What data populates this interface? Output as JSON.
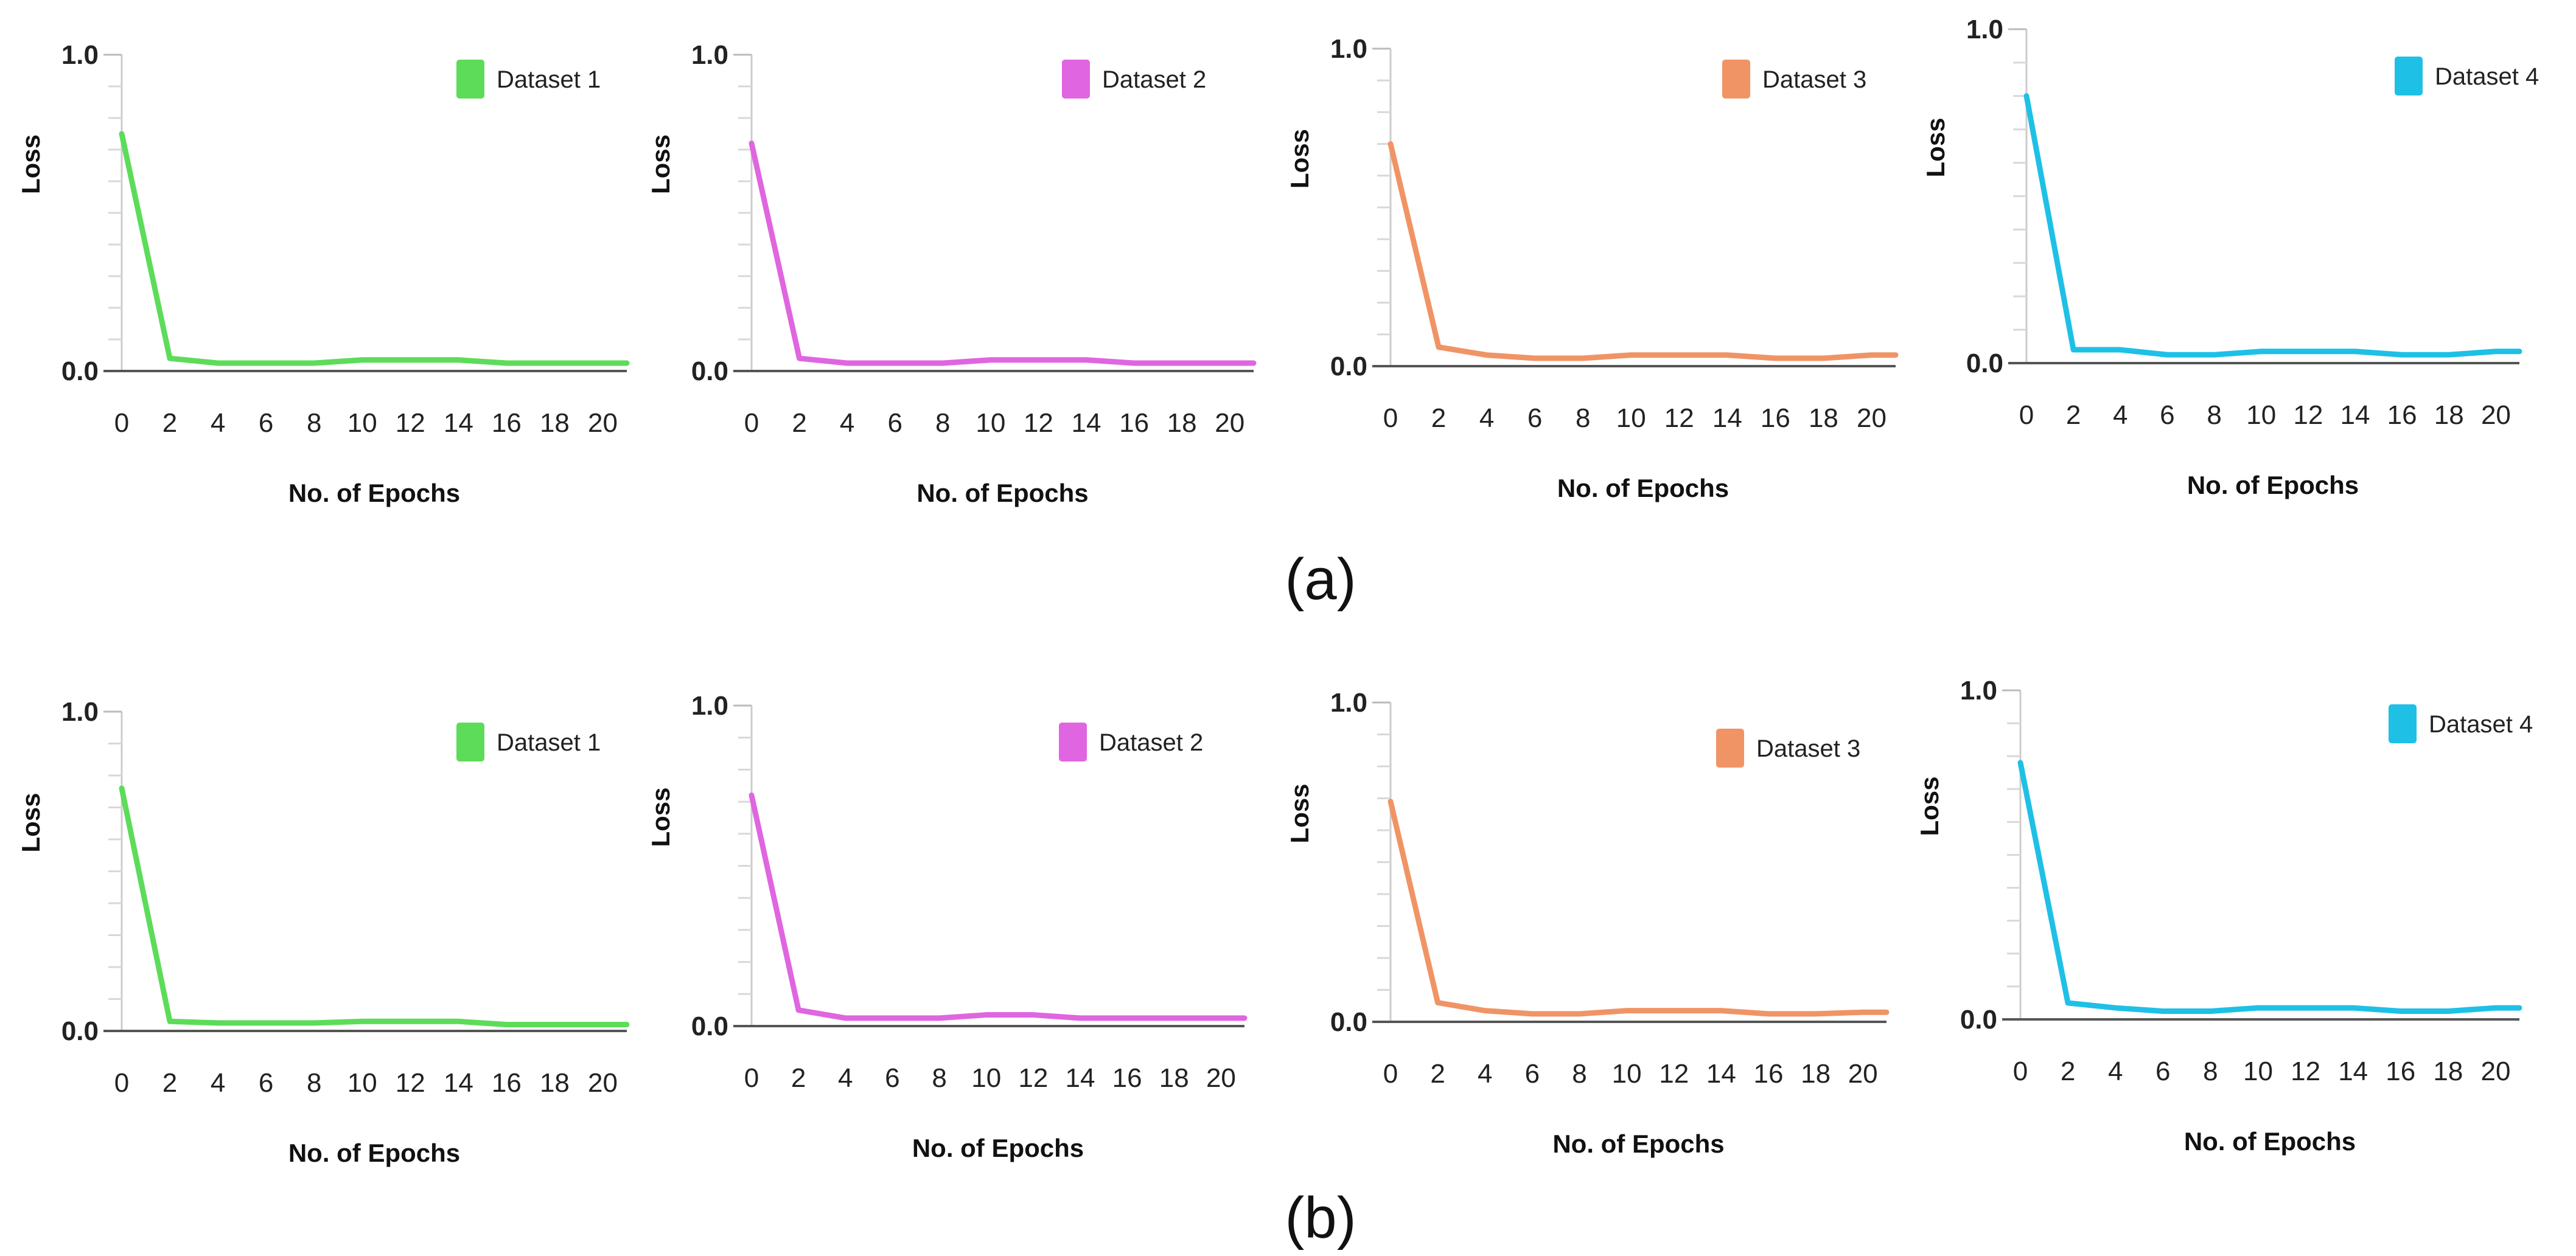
{
  "panels": [
    {
      "label": "(a)"
    },
    {
      "label": "(b)"
    }
  ],
  "chart_data": [
    {
      "type": "line",
      "row": "a",
      "title": "",
      "legend": "Dataset 1",
      "color": "#5ddc5a",
      "xlabel": "No. of Epochs",
      "ylabel": "Loss",
      "xlim": [
        0,
        21
      ],
      "ylim": [
        0,
        1.0
      ],
      "xticks": [
        0,
        2,
        4,
        6,
        8,
        10,
        12,
        14,
        16,
        18,
        20
      ],
      "yticks": [
        0.0,
        1.0
      ],
      "x": [
        0,
        2,
        4,
        6,
        8,
        10,
        12,
        14,
        16,
        18,
        20,
        21
      ],
      "y": [
        0.75,
        0.04,
        0.025,
        0.025,
        0.025,
        0.035,
        0.035,
        0.035,
        0.025,
        0.025,
        0.025,
        0.025
      ]
    },
    {
      "type": "line",
      "row": "a",
      "title": "",
      "legend": "Dataset 2",
      "color": "#e065e0",
      "xlabel": "No. of Epochs",
      "ylabel": "Loss",
      "xlim": [
        0,
        21
      ],
      "ylim": [
        0,
        1.0
      ],
      "xticks": [
        0,
        2,
        4,
        6,
        8,
        10,
        12,
        14,
        16,
        18,
        20
      ],
      "yticks": [
        0.0,
        1.0
      ],
      "x": [
        0,
        2,
        4,
        6,
        8,
        10,
        12,
        14,
        16,
        18,
        20,
        21
      ],
      "y": [
        0.72,
        0.04,
        0.025,
        0.025,
        0.025,
        0.035,
        0.035,
        0.035,
        0.025,
        0.025,
        0.025,
        0.025
      ]
    },
    {
      "type": "line",
      "row": "a",
      "title": "",
      "legend": "Dataset 3",
      "color": "#f09466",
      "xlabel": "No. of Epochs",
      "ylabel": "Loss",
      "xlim": [
        0,
        21
      ],
      "ylim": [
        0,
        1.0
      ],
      "xticks": [
        0,
        2,
        4,
        6,
        8,
        10,
        12,
        14,
        16,
        18,
        20
      ],
      "yticks": [
        0.0,
        1.0
      ],
      "x": [
        0,
        2,
        4,
        6,
        8,
        10,
        12,
        14,
        16,
        18,
        20,
        21
      ],
      "y": [
        0.7,
        0.06,
        0.035,
        0.025,
        0.025,
        0.035,
        0.035,
        0.035,
        0.025,
        0.025,
        0.035,
        0.035
      ]
    },
    {
      "type": "line",
      "row": "a",
      "title": "",
      "legend": "Dataset 4",
      "color": "#1ec0e6",
      "xlabel": "No. of Epochs",
      "ylabel": "Loss",
      "xlim": [
        0,
        21
      ],
      "ylim": [
        0,
        1.0
      ],
      "xticks": [
        0,
        2,
        4,
        6,
        8,
        10,
        12,
        14,
        16,
        18,
        20
      ],
      "yticks": [
        0.0,
        1.0
      ],
      "x": [
        0,
        2,
        4,
        6,
        8,
        10,
        12,
        14,
        16,
        18,
        20,
        21
      ],
      "y": [
        0.8,
        0.04,
        0.04,
        0.025,
        0.025,
        0.035,
        0.035,
        0.035,
        0.025,
        0.025,
        0.035,
        0.035
      ]
    },
    {
      "type": "line",
      "row": "b",
      "title": "",
      "legend": "Dataset 1",
      "color": "#5ddc5a",
      "xlabel": "No. of Epochs",
      "ylabel": "Loss",
      "xlim": [
        0,
        21
      ],
      "ylim": [
        0,
        1.0
      ],
      "xticks": [
        0,
        2,
        4,
        6,
        8,
        10,
        12,
        14,
        16,
        18,
        20
      ],
      "yticks": [
        0.0,
        1.0
      ],
      "x": [
        0,
        2,
        4,
        6,
        8,
        10,
        12,
        14,
        16,
        18,
        20,
        21
      ],
      "y": [
        0.76,
        0.03,
        0.025,
        0.025,
        0.025,
        0.03,
        0.03,
        0.03,
        0.02,
        0.02,
        0.02,
        0.02
      ]
    },
    {
      "type": "line",
      "row": "b",
      "title": "",
      "legend": "Dataset 2",
      "color": "#e065e0",
      "xlabel": "No. of Epochs",
      "ylabel": "Loss",
      "xlim": [
        0,
        21
      ],
      "ylim": [
        0,
        1.0
      ],
      "xticks": [
        0,
        2,
        4,
        6,
        8,
        10,
        12,
        14,
        16,
        18,
        20
      ],
      "yticks": [
        0.0,
        1.0
      ],
      "x": [
        0,
        2,
        4,
        6,
        8,
        10,
        12,
        14,
        16,
        18,
        20,
        21
      ],
      "y": [
        0.72,
        0.05,
        0.025,
        0.025,
        0.025,
        0.035,
        0.035,
        0.025,
        0.025,
        0.025,
        0.025,
        0.025
      ]
    },
    {
      "type": "line",
      "row": "b",
      "title": "",
      "legend": "Dataset 3",
      "color": "#f09466",
      "xlabel": "No. of Epochs",
      "ylabel": "Loss",
      "xlim": [
        0,
        21
      ],
      "ylim": [
        0,
        1.0
      ],
      "xticks": [
        0,
        2,
        4,
        6,
        8,
        10,
        12,
        14,
        16,
        18,
        20
      ],
      "yticks": [
        0.0,
        1.0
      ],
      "x": [
        0,
        2,
        4,
        6,
        8,
        10,
        12,
        14,
        16,
        18,
        20,
        21
      ],
      "y": [
        0.69,
        0.06,
        0.035,
        0.025,
        0.025,
        0.035,
        0.035,
        0.035,
        0.025,
        0.025,
        0.03,
        0.03
      ]
    },
    {
      "type": "line",
      "row": "b",
      "title": "",
      "legend": "Dataset 4",
      "color": "#1ec0e6",
      "xlabel": "No. of Epochs",
      "ylabel": "Loss",
      "xlim": [
        0,
        21
      ],
      "ylim": [
        0,
        1.0
      ],
      "xticks": [
        0,
        2,
        4,
        6,
        8,
        10,
        12,
        14,
        16,
        18,
        20
      ],
      "yticks": [
        0.0,
        1.0
      ],
      "x": [
        0,
        2,
        4,
        6,
        8,
        10,
        12,
        14,
        16,
        18,
        20,
        21
      ],
      "y": [
        0.78,
        0.05,
        0.035,
        0.025,
        0.025,
        0.035,
        0.035,
        0.035,
        0.025,
        0.025,
        0.035,
        0.035
      ]
    }
  ]
}
